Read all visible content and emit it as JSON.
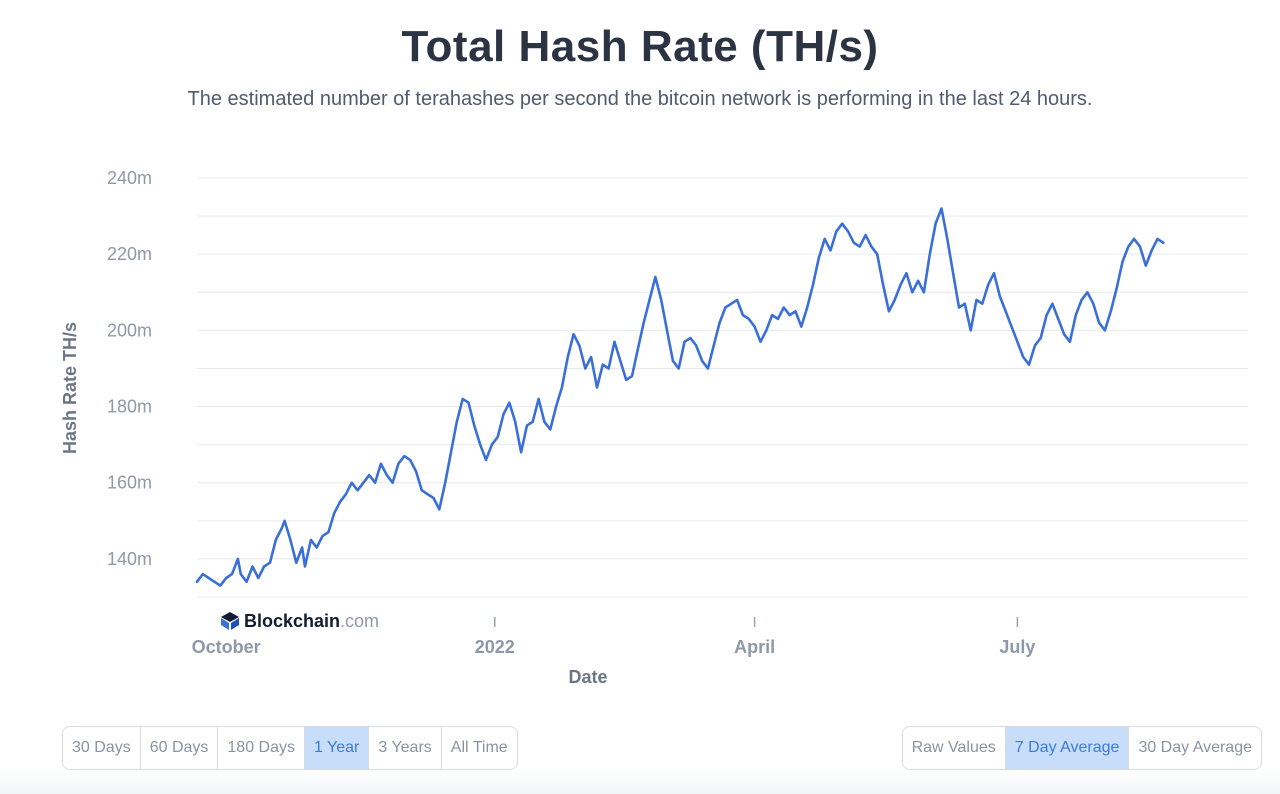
{
  "header": {
    "title": "Total Hash Rate (TH/s)",
    "subtitle": "The estimated number of terahashes per second the bitcoin network is performing in the last 24 hours."
  },
  "logo": {
    "name": "Blockchain",
    "suffix": ".com"
  },
  "colors": {
    "line": "#3a6fd8",
    "grid": "#e6e9ee",
    "active_button_bg": "#c8ddf9"
  },
  "chart_data": {
    "type": "line",
    "title": "Total Hash Rate (TH/s)",
    "xlabel": "Date",
    "ylabel": "Hash Rate TH/s",
    "ylim": [
      130,
      240
    ],
    "x_range_days": [
      0,
      360
    ],
    "yticks": [
      {
        "value": 140,
        "label": "140m"
      },
      {
        "value": 160,
        "label": "160m"
      },
      {
        "value": 180,
        "label": "180m"
      },
      {
        "value": 200,
        "label": "200m"
      },
      {
        "value": 220,
        "label": "220m"
      },
      {
        "value": 240,
        "label": "240m"
      }
    ],
    "xticks": [
      {
        "day": 10,
        "label": "October"
      },
      {
        "day": 102,
        "label": "2022"
      },
      {
        "day": 191,
        "label": "April"
      },
      {
        "day": 281,
        "label": "July"
      }
    ],
    "series": [
      {
        "name": "Hash Rate (7 Day Average)",
        "points": [
          [
            0,
            134
          ],
          [
            2,
            136
          ],
          [
            4,
            135
          ],
          [
            6,
            134
          ],
          [
            8,
            133
          ],
          [
            10,
            135
          ],
          [
            12,
            136
          ],
          [
            14,
            140
          ],
          [
            15,
            136
          ],
          [
            17,
            134
          ],
          [
            19,
            138
          ],
          [
            21,
            135
          ],
          [
            23,
            138
          ],
          [
            25,
            139
          ],
          [
            27,
            145
          ],
          [
            29,
            148
          ],
          [
            30,
            150
          ],
          [
            32,
            145
          ],
          [
            34,
            139
          ],
          [
            36,
            143
          ],
          [
            37,
            138
          ],
          [
            39,
            145
          ],
          [
            41,
            143
          ],
          [
            43,
            146
          ],
          [
            45,
            147
          ],
          [
            47,
            152
          ],
          [
            49,
            155
          ],
          [
            51,
            157
          ],
          [
            53,
            160
          ],
          [
            55,
            158
          ],
          [
            57,
            160
          ],
          [
            59,
            162
          ],
          [
            61,
            160
          ],
          [
            63,
            165
          ],
          [
            65,
            162
          ],
          [
            67,
            160
          ],
          [
            69,
            165
          ],
          [
            71,
            167
          ],
          [
            73,
            166
          ],
          [
            75,
            163
          ],
          [
            77,
            158
          ],
          [
            79,
            157
          ],
          [
            81,
            156
          ],
          [
            83,
            153
          ],
          [
            85,
            160
          ],
          [
            87,
            168
          ],
          [
            89,
            176
          ],
          [
            91,
            182
          ],
          [
            93,
            181
          ],
          [
            95,
            175
          ],
          [
            97,
            170
          ],
          [
            99,
            166
          ],
          [
            101,
            170
          ],
          [
            103,
            172
          ],
          [
            105,
            178
          ],
          [
            107,
            181
          ],
          [
            109,
            176
          ],
          [
            111,
            168
          ],
          [
            113,
            175
          ],
          [
            115,
            176
          ],
          [
            117,
            182
          ],
          [
            119,
            176
          ],
          [
            121,
            174
          ],
          [
            123,
            180
          ],
          [
            125,
            185
          ],
          [
            127,
            193
          ],
          [
            129,
            199
          ],
          [
            131,
            196
          ],
          [
            133,
            190
          ],
          [
            135,
            193
          ],
          [
            137,
            185
          ],
          [
            139,
            191
          ],
          [
            141,
            190
          ],
          [
            143,
            197
          ],
          [
            145,
            192
          ],
          [
            147,
            187
          ],
          [
            149,
            188
          ],
          [
            151,
            195
          ],
          [
            153,
            202
          ],
          [
            155,
            208
          ],
          [
            157,
            214
          ],
          [
            159,
            208
          ],
          [
            161,
            200
          ],
          [
            163,
            192
          ],
          [
            165,
            190
          ],
          [
            167,
            197
          ],
          [
            169,
            198
          ],
          [
            171,
            196
          ],
          [
            173,
            192
          ],
          [
            175,
            190
          ],
          [
            177,
            196
          ],
          [
            179,
            202
          ],
          [
            181,
            206
          ],
          [
            183,
            207
          ],
          [
            185,
            208
          ],
          [
            187,
            204
          ],
          [
            189,
            203
          ],
          [
            191,
            201
          ],
          [
            193,
            197
          ],
          [
            195,
            200
          ],
          [
            197,
            204
          ],
          [
            199,
            203
          ],
          [
            201,
            206
          ],
          [
            203,
            204
          ],
          [
            205,
            205
          ],
          [
            207,
            201
          ],
          [
            209,
            206
          ],
          [
            211,
            212
          ],
          [
            213,
            219
          ],
          [
            215,
            224
          ],
          [
            217,
            221
          ],
          [
            219,
            226
          ],
          [
            221,
            228
          ],
          [
            223,
            226
          ],
          [
            225,
            223
          ],
          [
            227,
            222
          ],
          [
            229,
            225
          ],
          [
            231,
            222
          ],
          [
            233,
            220
          ],
          [
            235,
            212
          ],
          [
            237,
            205
          ],
          [
            239,
            208
          ],
          [
            241,
            212
          ],
          [
            243,
            215
          ],
          [
            245,
            210
          ],
          [
            247,
            213
          ],
          [
            249,
            210
          ],
          [
            251,
            220
          ],
          [
            253,
            228
          ],
          [
            255,
            232
          ],
          [
            257,
            224
          ],
          [
            259,
            215
          ],
          [
            261,
            206
          ],
          [
            263,
            207
          ],
          [
            265,
            200
          ],
          [
            267,
            208
          ],
          [
            269,
            207
          ],
          [
            271,
            212
          ],
          [
            273,
            215
          ],
          [
            275,
            209
          ],
          [
            277,
            205
          ],
          [
            279,
            201
          ],
          [
            281,
            197
          ],
          [
            283,
            193
          ],
          [
            285,
            191
          ],
          [
            287,
            196
          ],
          [
            289,
            198
          ],
          [
            291,
            204
          ],
          [
            293,
            207
          ],
          [
            295,
            203
          ],
          [
            297,
            199
          ],
          [
            299,
            197
          ],
          [
            301,
            204
          ],
          [
            303,
            208
          ],
          [
            305,
            210
          ],
          [
            307,
            207
          ],
          [
            309,
            202
          ],
          [
            311,
            200
          ],
          [
            313,
            205
          ],
          [
            315,
            211
          ],
          [
            317,
            218
          ],
          [
            319,
            222
          ],
          [
            321,
            224
          ],
          [
            323,
            222
          ],
          [
            325,
            217
          ],
          [
            327,
            221
          ],
          [
            329,
            224
          ],
          [
            331,
            223
          ]
        ]
      }
    ]
  },
  "range_buttons": [
    {
      "label": "30 Days",
      "active": false
    },
    {
      "label": "60 Days",
      "active": false
    },
    {
      "label": "180 Days",
      "active": false
    },
    {
      "label": "1 Year",
      "active": true
    },
    {
      "label": "3 Years",
      "active": false
    },
    {
      "label": "All Time",
      "active": false
    }
  ],
  "avg_buttons": [
    {
      "label": "Raw Values",
      "active": false
    },
    {
      "label": "7 Day Average",
      "active": true
    },
    {
      "label": "30 Day Average",
      "active": false
    }
  ]
}
